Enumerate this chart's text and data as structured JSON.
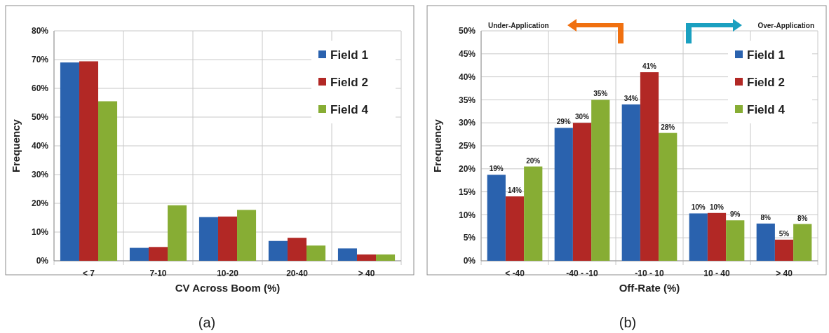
{
  "chart_data": [
    {
      "type": "bar",
      "xlabel": "CV Across Boom (%)",
      "ylabel": "Frequency",
      "categories": [
        "< 7",
        "7-10",
        "10-20",
        "20-40",
        "> 40"
      ],
      "series": [
        {
          "name": "Field 1",
          "color": "#2a62ae",
          "values": [
            69,
            4.5,
            15.2,
            6.9,
            4.3
          ]
        },
        {
          "name": "Field 2",
          "color": "#b22825",
          "values": [
            69.4,
            4.8,
            15.4,
            8.0,
            2.2
          ]
        },
        {
          "name": "Field 4",
          "color": "#87ad34",
          "values": [
            55.5,
            19.3,
            17.7,
            5.3,
            2.2
          ]
        }
      ],
      "ylim": [
        0,
        80
      ],
      "yticks": [
        {
          "value": 0,
          "label": "0%"
        },
        {
          "value": 10,
          "label": "10%"
        },
        {
          "value": 20,
          "label": "20%"
        },
        {
          "value": 30,
          "label": "30%"
        },
        {
          "value": 40,
          "label": "40%"
        },
        {
          "value": 50,
          "label": "50%"
        },
        {
          "value": 60,
          "label": "60%"
        },
        {
          "value": 70,
          "label": "70%"
        },
        {
          "value": 80,
          "label": "80%"
        }
      ],
      "grid": true,
      "legend": "top right",
      "annotations": [
        "(a)"
      ]
    },
    {
      "type": "bar",
      "xlabel": "Off-Rate (%)",
      "ylabel": "Frequency",
      "categories": [
        "< -40",
        "-40 - -10",
        "-10 - 10",
        "10 - 40",
        "> 40"
      ],
      "series": [
        {
          "name": "Field 1",
          "color": "#2a62ae",
          "values": [
            18.7,
            28.9,
            34.0,
            10.3,
            8.1
          ],
          "value_labels": [
            "19%",
            "29%",
            "34%",
            "10%",
            "8%"
          ]
        },
        {
          "name": "Field 2",
          "color": "#b22825",
          "values": [
            14.0,
            30.0,
            41.0,
            10.4,
            4.6
          ],
          "value_labels": [
            "14%",
            "30%",
            "41%",
            "10%",
            "5%"
          ]
        },
        {
          "name": "Field 4",
          "color": "#87ad34",
          "values": [
            20.5,
            35.0,
            27.8,
            8.8,
            8.0
          ],
          "value_labels": [
            "20%",
            "35%",
            "28%",
            "9%",
            "8%"
          ]
        }
      ],
      "ylim": [
        0,
        50
      ],
      "yticks": [
        {
          "value": 0,
          "label": "0%"
        },
        {
          "value": 5,
          "label": "5%"
        },
        {
          "value": 10,
          "label": "10%"
        },
        {
          "value": 15,
          "label": "15%"
        },
        {
          "value": 20,
          "label": "20%"
        },
        {
          "value": 25,
          "label": "25%"
        },
        {
          "value": 30,
          "label": "30%"
        },
        {
          "value": 35,
          "label": "35%"
        },
        {
          "value": 40,
          "label": "40%"
        },
        {
          "value": 45,
          "label": "45%"
        },
        {
          "value": 50,
          "label": "50%"
        }
      ],
      "grid": true,
      "legend": "top right",
      "annotations": [
        "Under-Application",
        "Over-Application",
        "(b)"
      ]
    }
  ]
}
